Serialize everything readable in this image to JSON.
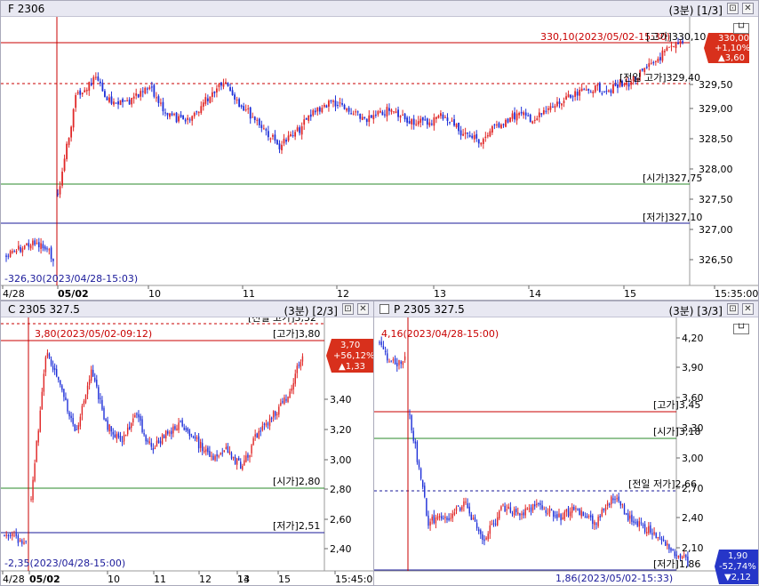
{
  "panel_f": {
    "code": "F 2306",
    "interval": "(3분)",
    "page": "[1/3]",
    "y_ticks": [
      "330,00",
      "329,50",
      "329,00",
      "328,50",
      "328,00",
      "327,50",
      "327,00",
      "326,50"
    ],
    "x_ticks": [
      "4/28",
      "05/02",
      "10",
      "11",
      "12",
      "13",
      "14",
      "15",
      "15:35:00"
    ],
    "ref_high_marker": "330,10(2023/05/02-15:30)",
    "label_high": "[고가]330,10",
    "label_prev_high": "[전일 고가]329,40",
    "label_open": "[시가]327,75",
    "label_low": "[저가]327,10",
    "low_marker": "-326,30(2023/04/28-15:03)",
    "badge_price": "330,00",
    "badge_pct": "+1,10%",
    "badge_chg": "▲3,60"
  },
  "panel_c": {
    "code": "C 2305 327.5",
    "interval": "(3분)",
    "page": "[2/3]",
    "y_ticks": [
      "3,40",
      "3,20",
      "3,00",
      "2,80",
      "2,60",
      "2,40"
    ],
    "x_ticks": [
      "4/28",
      "05/02",
      "10",
      "11",
      "12",
      "13",
      "14",
      "15",
      "15:45:00"
    ],
    "label_prev_high": "[전일 고가]3,32",
    "high_marker": "3,80(2023/05/02-09:12)",
    "label_high": "[고가]3,80",
    "label_open": "[시가]2,80",
    "label_low": "[저가]2,51",
    "low_marker": "-2,35(2023/04/28-15:00)",
    "badge_price": "3,70",
    "badge_pct": "+56,12%",
    "badge_chg": "▲1,33"
  },
  "panel_p": {
    "code": "P 2305 327.5",
    "interval": "(3분)",
    "page": "[3/3]",
    "y_ticks": [
      "4,20",
      "3,90",
      "3,60",
      "3,30",
      "3,00",
      "2,70",
      "2,40",
      "2,10"
    ],
    "high_marker": "4,16(2023/04/28-15:00)",
    "label_high": "[고가]3,45",
    "label_open": "[시가]3,18",
    "label_prev_low": "[전일 저가]2,66",
    "label_low": "[저가]1,86",
    "low_marker": "1,86(2023/05/02-15:33)",
    "badge_price": "1,90",
    "badge_pct": "-52,74%",
    "badge_chg": "▼2,12"
  },
  "colors": {
    "up": "#e02828",
    "down": "#1f30d8",
    "high_line": "#c80000",
    "open_line": "#2a8a2a",
    "low_line": "#1a1a9a",
    "badge_up": "#d8301c",
    "badge_down": "#2636c8"
  },
  "icons": {
    "pin": "pin-icon",
    "close": "close-icon"
  }
}
